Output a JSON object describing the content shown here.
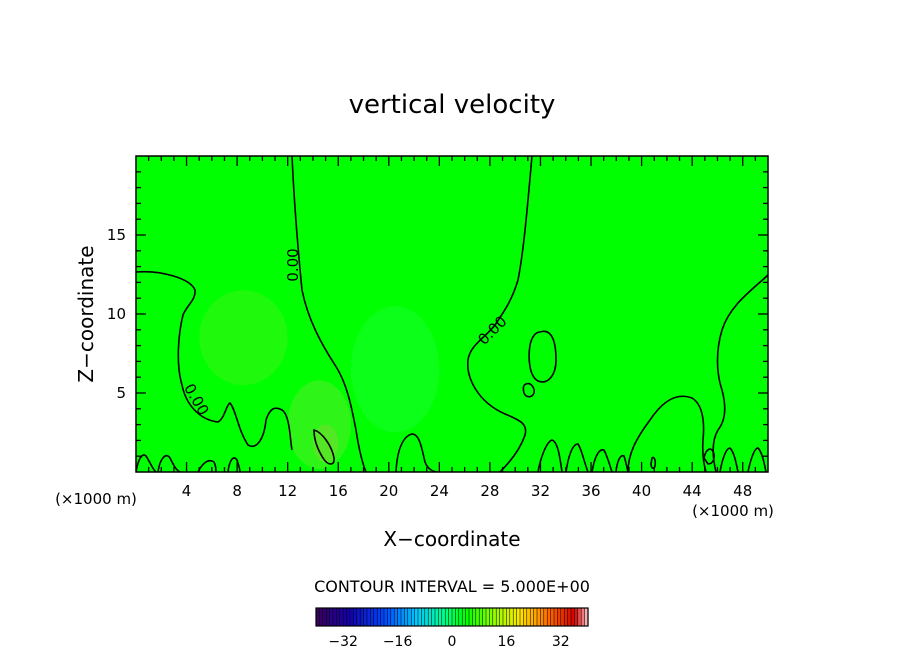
{
  "chart_data": {
    "type": "heatmap",
    "title": "vertical velocity",
    "xlabel": "X−coordinate",
    "ylabel": "Z−coordinate",
    "x_unit_left": "(×1000 m)",
    "x_unit_right": "(×1000 m)",
    "xlim": [
      0,
      50
    ],
    "ylim": [
      0,
      20
    ],
    "x_ticks": [
      4,
      8,
      12,
      16,
      20,
      24,
      28,
      32,
      36,
      40,
      44,
      48
    ],
    "y_ticks": [
      5,
      10,
      15
    ],
    "contour_interval_text": "CONTOUR INTERVAL = 5.000E+00",
    "contour_interval": 5.0,
    "contour_label": "0.00",
    "colorbar": {
      "min": -40,
      "max": 40,
      "ticks": [
        -32,
        -16,
        0,
        16,
        32
      ],
      "tick_labels": [
        "−32",
        "−16",
        "0",
        "16",
        "32"
      ]
    },
    "colors": {
      "field_background": "#00ff00",
      "contour_line": "#000000"
    },
    "field_anomalies": [
      {
        "x": 8.5,
        "z": 8.5,
        "rx": 3.5,
        "rz": 3.0,
        "color": "#55ee22",
        "opacity": 0.35
      },
      {
        "x": 14.5,
        "z": 3.0,
        "rx": 2.5,
        "rz": 2.8,
        "color": "#66e633",
        "opacity": 0.45
      },
      {
        "x": 20.5,
        "z": 6.5,
        "rx": 3.5,
        "rz": 4.0,
        "color": "#22ff44",
        "opacity": 0.35
      },
      {
        "x": 15.0,
        "z": 1.8,
        "rx": 1.0,
        "rz": 1.2,
        "color": "#77dd33",
        "opacity": 0.55
      }
    ]
  }
}
